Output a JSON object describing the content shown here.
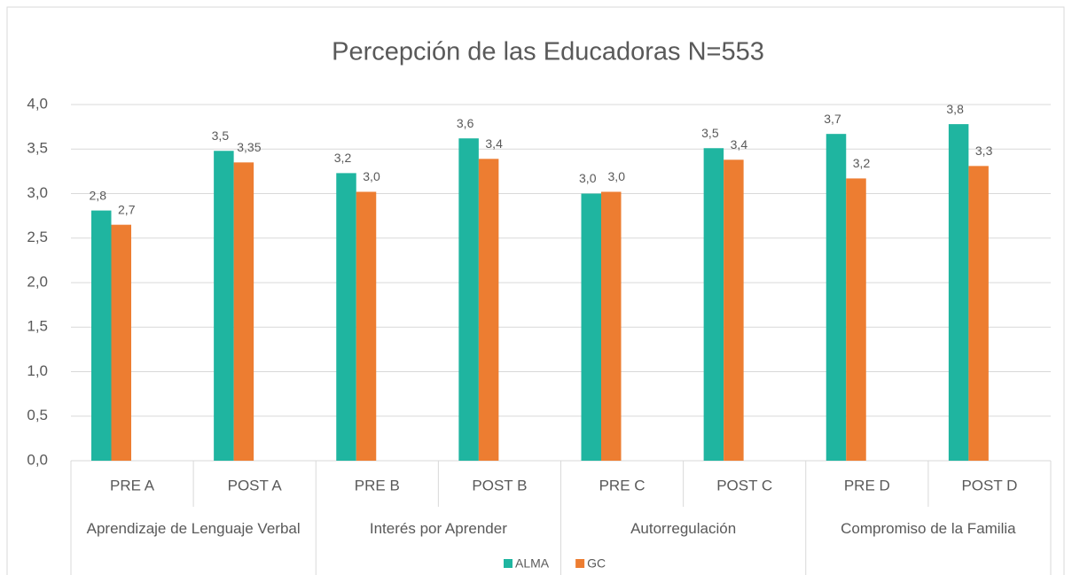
{
  "chart_data": {
    "type": "bar",
    "title": "Percepción de las Educadoras N=553",
    "categories": [
      "PRE A",
      "POST A",
      "PRE B",
      "POST B",
      "PRE C",
      "POST C",
      "PRE D",
      "POST D"
    ],
    "groups": [
      "Aprendizaje de Lenguaje Verbal",
      "Interés por Aprender",
      "Autorregulación",
      "Compromiso de la Familia"
    ],
    "series": [
      {
        "name": "ALMA",
        "color": "#1fb5a0",
        "values": [
          2.81,
          3.48,
          3.23,
          3.62,
          3.0,
          3.51,
          3.67,
          3.78
        ],
        "value_labels": [
          "2,8",
          "3,5",
          "3,2",
          "3,6",
          "3,0",
          "3,5",
          "3,7",
          "3,8"
        ]
      },
      {
        "name": "GC",
        "color": "#ed7d31",
        "values": [
          2.65,
          3.35,
          3.02,
          3.39,
          3.02,
          3.38,
          3.17,
          3.31
        ],
        "value_labels": [
          "2,7",
          "3,35",
          "3,0",
          "3,4",
          "3,0",
          "3,4",
          "3,2",
          "3,3"
        ]
      }
    ],
    "ylim": [
      0,
      4
    ],
    "yticks": [
      {
        "value": 0,
        "label": "0,0"
      },
      {
        "value": 0.5,
        "label": "0,5"
      },
      {
        "value": 1,
        "label": "1,0"
      },
      {
        "value": 1.5,
        "label": "1,5"
      },
      {
        "value": 2,
        "label": "2,0"
      },
      {
        "value": 2.5,
        "label": "2,5"
      },
      {
        "value": 3,
        "label": "3,0"
      },
      {
        "value": 3.5,
        "label": "3,5"
      },
      {
        "value": 4,
        "label": "4,0"
      }
    ],
    "grid": true,
    "legend": "bottom"
  }
}
